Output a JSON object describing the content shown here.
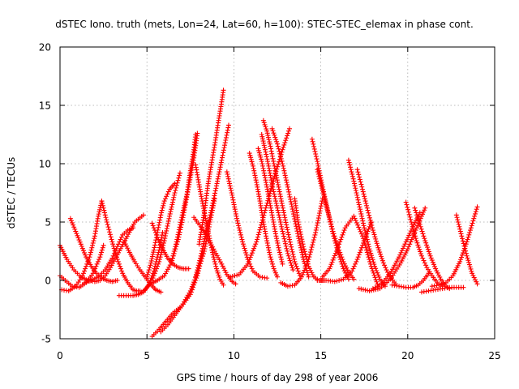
{
  "chart_data": {
    "type": "scatter",
    "title": "dSTEC Iono. truth (mets, Lon=24, Lat=60, h=100): STEC-STEC_elemax in phase cont.",
    "xlabel": "GPS time / hours of day 298 of year 2006",
    "ylabel": "dSTEC  / TECUs",
    "xlim": [
      0,
      25
    ],
    "ylim": [
      -5,
      20
    ],
    "xticks": [
      0,
      5,
      10,
      15,
      20,
      25
    ],
    "yticks": [
      -5,
      0,
      5,
      10,
      15,
      20
    ],
    "xtick_labels": [
      "0",
      "5",
      "10",
      "15",
      "20",
      "25"
    ],
    "ytick_labels": [
      "-5",
      "0",
      "5",
      "10",
      "15",
      "20"
    ],
    "grid": true,
    "legend": "none",
    "marker": "+",
    "color": "#ff0000",
    "series": [
      {
        "x": [
          0.0,
          0.4,
          0.8,
          1.2,
          1.6,
          2.0,
          2.3,
          2.6,
          2.9,
          3.3,
          3.8,
          4.3,
          4.8
        ],
        "y": [
          3.0,
          1.8,
          0.9,
          0.3,
          0.0,
          -0.1,
          0.0,
          0.4,
          1.1,
          2.2,
          3.6,
          5.0,
          5.6
        ]
      },
      {
        "x": [
          0.0,
          0.3,
          0.7,
          1.1,
          1.5,
          1.9,
          2.3,
          2.5
        ],
        "y": [
          0.4,
          0.0,
          -0.5,
          -0.6,
          -0.2,
          0.6,
          2.0,
          3.0
        ]
      },
      {
        "x": [
          0.1,
          0.5,
          0.9,
          1.3,
          1.7,
          2.0,
          2.2,
          2.4
        ],
        "y": [
          -0.8,
          -0.9,
          -0.5,
          0.4,
          2.0,
          3.8,
          5.5,
          6.8
        ]
      },
      {
        "x": [
          2.4,
          2.7,
          3.0,
          3.3,
          3.6,
          3.9,
          4.2,
          4.4,
          4.6
        ],
        "y": [
          6.8,
          5.0,
          3.3,
          1.8,
          0.6,
          -0.2,
          -0.8,
          -0.9,
          -0.9
        ]
      },
      {
        "x": [
          0.6,
          0.9,
          1.2,
          1.5,
          1.8,
          2.1,
          2.4,
          2.7,
          3.0,
          3.3
        ],
        "y": [
          5.3,
          4.2,
          3.1,
          2.0,
          1.2,
          0.6,
          0.2,
          0.0,
          -0.1,
          0.0
        ]
      },
      {
        "x": [
          3.4,
          3.8,
          4.2,
          4.5,
          4.8,
          5.1,
          5.4,
          5.7,
          5.9
        ],
        "y": [
          -1.3,
          -1.3,
          -1.3,
          -1.2,
          -1.0,
          -0.4,
          0.8,
          2.6,
          4.1
        ]
      },
      {
        "x": [
          1.4,
          1.8,
          2.2,
          2.6,
          3.0,
          3.3,
          3.6,
          3.9,
          4.2
        ],
        "y": [
          -0.2,
          0.0,
          0.3,
          0.9,
          1.9,
          2.9,
          3.9,
          4.3,
          4.5
        ]
      },
      {
        "x": [
          3.7,
          4.0,
          4.3,
          4.6,
          4.9,
          5.2,
          5.5,
          5.8
        ],
        "y": [
          3.3,
          2.4,
          1.6,
          0.9,
          0.3,
          -0.3,
          -0.8,
          -1.0
        ]
      },
      {
        "x": [
          5.0,
          5.2,
          5.4,
          5.6,
          5.8,
          6.0,
          6.3,
          6.6
        ],
        "y": [
          0.3,
          1.3,
          2.6,
          4.1,
          5.6,
          6.8,
          7.8,
          8.3
        ]
      },
      {
        "x": [
          5.3,
          5.6,
          5.9,
          6.2,
          6.5,
          6.8,
          7.1,
          7.4
        ],
        "y": [
          4.9,
          3.7,
          2.7,
          1.9,
          1.4,
          1.1,
          1.0,
          1.0
        ]
      },
      {
        "x": [
          4.5,
          4.9,
          5.3,
          5.7,
          6.0,
          6.3,
          6.6,
          6.9
        ],
        "y": [
          -1.2,
          -0.8,
          0.0,
          1.6,
          3.4,
          5.5,
          7.5,
          9.2
        ]
      },
      {
        "x": [
          5.2,
          5.6,
          6.0,
          6.4,
          6.8,
          7.1,
          7.4,
          7.7,
          7.9
        ],
        "y": [
          -0.3,
          0.0,
          0.4,
          1.5,
          3.5,
          5.6,
          8.0,
          10.5,
          12.6
        ]
      },
      {
        "x": [
          6.4,
          6.7,
          7.0,
          7.3,
          7.5,
          7.7,
          7.8
        ],
        "y": [
          1.5,
          3.3,
          5.4,
          7.4,
          9.4,
          11.2,
          12.5
        ]
      },
      {
        "x": [
          5.3,
          5.7,
          6.1,
          6.5,
          7.0,
          7.5,
          7.9,
          8.2,
          8.5
        ],
        "y": [
          -4.8,
          -4.2,
          -3.5,
          -2.8,
          -2.2,
          -1.2,
          0.4,
          2.5,
          5.0
        ]
      },
      {
        "x": [
          5.8,
          6.2,
          6.6,
          7.0,
          7.5,
          7.9,
          8.3,
          8.6,
          8.9
        ],
        "y": [
          -4.4,
          -3.8,
          -3.0,
          -2.2,
          -0.9,
          0.6,
          2.5,
          4.8,
          7.0
        ]
      },
      {
        "x": [
          8.0,
          8.3,
          8.5,
          8.7,
          8.9,
          9.1,
          9.3,
          9.4
        ],
        "y": [
          3.1,
          5.8,
          8.1,
          9.9,
          11.6,
          13.5,
          15.3,
          16.3
        ]
      },
      {
        "x": [
          7.8,
          8.1,
          8.4,
          8.7,
          9.0,
          9.3,
          9.5,
          9.7
        ],
        "y": [
          0.3,
          2.1,
          4.0,
          6.0,
          8.1,
          10.3,
          11.8,
          13.3
        ]
      },
      {
        "x": [
          7.8,
          8.0,
          8.2,
          8.4,
          8.6,
          8.8,
          9.0,
          9.2,
          9.4
        ],
        "y": [
          9.9,
          8.2,
          6.6,
          5.1,
          3.6,
          2.2,
          1.0,
          0.1,
          -0.4
        ]
      },
      {
        "x": [
          7.7,
          8.1,
          8.5,
          8.9,
          9.3,
          9.6,
          9.9,
          10.1
        ],
        "y": [
          5.4,
          4.6,
          3.6,
          2.5,
          1.4,
          0.5,
          -0.1,
          -0.3
        ]
      },
      {
        "x": [
          9.6,
          9.9,
          10.2,
          10.5,
          10.8,
          11.1,
          11.5,
          11.9
        ],
        "y": [
          9.3,
          7.3,
          5.1,
          3.3,
          1.8,
          0.8,
          0.3,
          0.2
        ]
      },
      {
        "x": [
          9.8,
          10.3,
          10.8,
          11.3,
          11.8,
          12.3,
          12.8,
          13.2
        ],
        "y": [
          0.3,
          0.5,
          1.4,
          3.3,
          6.0,
          8.7,
          11.2,
          13.0
        ]
      },
      {
        "x": [
          10.9,
          11.1,
          11.3,
          11.5,
          11.7,
          11.9,
          12.1,
          12.3,
          12.5
        ],
        "y": [
          10.9,
          9.8,
          8.4,
          6.8,
          5.0,
          3.4,
          2.0,
          1.0,
          0.3
        ]
      },
      {
        "x": [
          11.4,
          11.6,
          11.8,
          12.0,
          12.2,
          12.4,
          12.6,
          12.8
        ],
        "y": [
          11.3,
          10.2,
          8.8,
          7.2,
          5.6,
          4.0,
          2.6,
          1.4
        ]
      },
      {
        "x": [
          11.6,
          11.8,
          12.0,
          12.2,
          12.5,
          12.8,
          13.1,
          13.4
        ],
        "y": [
          12.5,
          11.2,
          9.8,
          8.2,
          6.2,
          4.2,
          2.3,
          0.9
        ]
      },
      {
        "x": [
          11.7,
          11.9,
          12.1,
          12.3,
          12.6,
          12.9,
          13.2,
          13.5,
          13.8
        ],
        "y": [
          13.7,
          12.8,
          11.5,
          10.0,
          7.8,
          5.6,
          3.5,
          1.6,
          0.4
        ]
      },
      {
        "x": [
          12.2,
          12.5,
          12.8,
          13.1,
          13.4,
          13.7,
          14.0,
          14.3
        ],
        "y": [
          13.0,
          11.7,
          10.0,
          8.0,
          5.9,
          3.8,
          1.8,
          0.3
        ]
      },
      {
        "x": [
          12.7,
          13.1,
          13.5,
          13.9,
          14.3,
          14.7,
          15.1
        ],
        "y": [
          -0.2,
          -0.5,
          -0.4,
          0.3,
          1.8,
          4.1,
          7.0
        ]
      },
      {
        "x": [
          13.5,
          13.7,
          14.0,
          14.3,
          14.6,
          14.9,
          15.2
        ],
        "y": [
          7.0,
          5.0,
          2.9,
          1.2,
          0.3,
          0.0,
          0.0
        ]
      },
      {
        "x": [
          14.5,
          14.8,
          15.1,
          15.4,
          15.7,
          16.0,
          16.3,
          16.6
        ],
        "y": [
          12.1,
          10.2,
          8.0,
          6.0,
          4.0,
          2.4,
          1.0,
          0.1
        ]
      },
      {
        "x": [
          14.8,
          15.1,
          15.4,
          15.7,
          16.0,
          16.3,
          16.6,
          16.9
        ],
        "y": [
          9.5,
          7.7,
          5.9,
          4.2,
          2.8,
          1.6,
          0.7,
          0.1
        ]
      },
      {
        "x": [
          14.8,
          15.3,
          15.8,
          16.3,
          16.8,
          17.1,
          17.4,
          17.7,
          17.9
        ],
        "y": [
          0.0,
          0.0,
          -0.1,
          0.1,
          0.8,
          1.8,
          3.0,
          4.2,
          5.0
        ]
      },
      {
        "x": [
          16.6,
          16.9,
          17.2,
          17.5,
          17.8,
          18.1,
          18.4,
          18.7
        ],
        "y": [
          10.3,
          8.5,
          6.5,
          4.5,
          2.7,
          1.2,
          0.1,
          -0.5
        ]
      },
      {
        "x": [
          17.1,
          17.4,
          17.7,
          18.0,
          18.3,
          18.6,
          18.9,
          19.3
        ],
        "y": [
          9.5,
          7.8,
          6.0,
          4.3,
          2.8,
          1.5,
          0.5,
          -0.3
        ]
      },
      {
        "x": [
          15.1,
          15.5,
          15.9,
          16.4,
          16.9,
          17.4,
          17.9,
          18.3
        ],
        "y": [
          0.3,
          1.0,
          2.5,
          4.5,
          5.5,
          3.8,
          1.2,
          -0.5
        ]
      },
      {
        "x": [
          17.2,
          17.8,
          18.4,
          19.0,
          19.6,
          20.0,
          20.4,
          20.8,
          21.0
        ],
        "y": [
          -0.7,
          -0.9,
          -0.7,
          0.1,
          1.5,
          2.7,
          4.1,
          5.5,
          6.2
        ]
      },
      {
        "x": [
          18.0,
          18.5,
          19.0,
          19.5,
          19.9,
          20.3,
          20.7
        ],
        "y": [
          -0.7,
          -0.3,
          0.6,
          2.0,
          3.3,
          4.6,
          5.8
        ]
      },
      {
        "x": [
          19.1,
          19.5,
          19.9,
          20.3,
          20.6,
          20.9,
          21.2
        ],
        "y": [
          -0.4,
          -0.5,
          -0.6,
          -0.6,
          -0.4,
          0.0,
          0.6
        ]
      },
      {
        "x": [
          19.9,
          20.2,
          20.5,
          20.8,
          21.1,
          21.4,
          21.7,
          22.0
        ],
        "y": [
          6.7,
          5.0,
          3.4,
          2.1,
          1.1,
          0.4,
          -0.2,
          -0.5
        ]
      },
      {
        "x": [
          20.4,
          20.7,
          21.0,
          21.3,
          21.6,
          21.9,
          22.2,
          22.4
        ],
        "y": [
          6.2,
          4.8,
          3.4,
          2.1,
          1.0,
          0.1,
          -0.5,
          -0.7
        ]
      },
      {
        "x": [
          20.8,
          21.2,
          21.6,
          22.0,
          22.4,
          22.8,
          23.2
        ],
        "y": [
          -1.0,
          -0.9,
          -0.8,
          -0.7,
          -0.6,
          -0.6,
          -0.6
        ]
      },
      {
        "x": [
          21.4,
          21.8,
          22.2,
          22.6,
          23.0,
          23.4,
          23.8,
          24.0
        ],
        "y": [
          -0.5,
          -0.4,
          -0.2,
          0.4,
          1.6,
          3.3,
          5.3,
          6.3
        ]
      },
      {
        "x": [
          22.8,
          23.1,
          23.4,
          23.7,
          24.0
        ],
        "y": [
          5.6,
          3.8,
          2.1,
          0.6,
          -0.3
        ]
      }
    ]
  }
}
